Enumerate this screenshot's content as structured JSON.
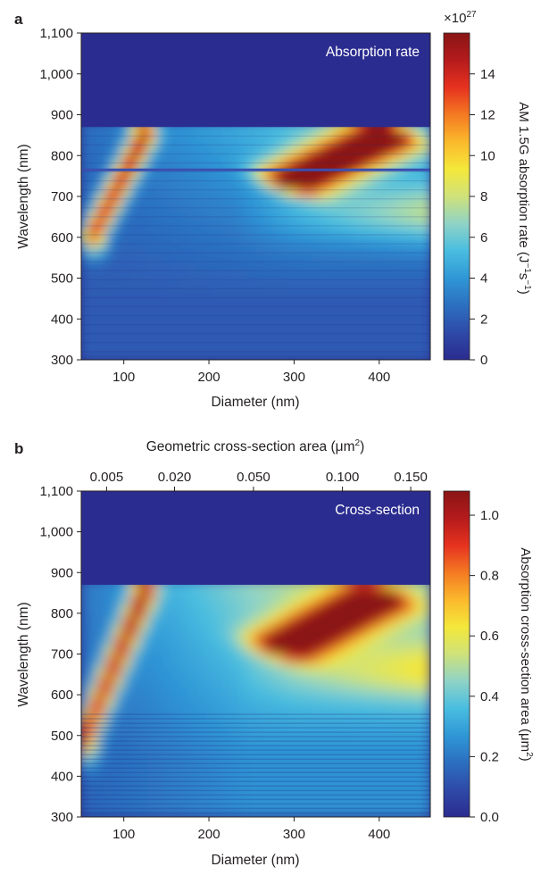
{
  "colormap": [
    "#2b2c8f",
    "#2e4aa8",
    "#2c6fc0",
    "#2f97d6",
    "#49bde0",
    "#8fd3c6",
    "#cfe27a",
    "#f4e83a",
    "#fbb92c",
    "#f47a22",
    "#e6321f",
    "#b51b1c",
    "#8a1515"
  ],
  "chart_data": [
    {
      "type": "heatmap",
      "panel": "a",
      "title": "Absorption rate",
      "xlabel": "Diameter (nm)",
      "ylabel": "Wavelength (nm)",
      "xlim": [
        50,
        460
      ],
      "ylim": [
        300,
        1100
      ],
      "x_ticks": [
        "100",
        "200",
        "300",
        "400"
      ],
      "y_ticks": [
        "300",
        "400",
        "500",
        "600",
        "700",
        "800",
        "900",
        "1,000",
        "1,100"
      ],
      "colorbar": {
        "label_main": "AM 1.5G absorption rate (J",
        "label_sup1": "−1",
        "label_mid": "s",
        "label_sup2": "−1",
        "label_end": ")",
        "multiplier_base": "×10",
        "multiplier_exp": "27",
        "range": [
          0,
          16
        ],
        "ticks": [
          "0",
          "2",
          "4",
          "6",
          "8",
          "10",
          "12",
          "14"
        ]
      },
      "features": [
        {
          "name": "cutoff",
          "wavelength": 870
        },
        {
          "name": "notch",
          "wavelength": 765
        },
        {
          "name": "mode-1",
          "diameter_start": 65,
          "wavelength_start": 610,
          "diameter_end": 125,
          "wavelength_end": 850,
          "peak": 12
        },
        {
          "name": "mode-2",
          "diameter_start": 300,
          "wavelength_start": 740,
          "diameter_end": 410,
          "wavelength_end": 850,
          "peak": 16
        }
      ]
    },
    {
      "type": "heatmap",
      "panel": "b",
      "title": "Cross-section",
      "xlabel": "Diameter (nm)",
      "x2label_main": "Geometric cross-section area (μm",
      "x2label_sup": "2",
      "x2label_end": ")",
      "x2_ticks": [
        "0.005",
        "0.020",
        "0.050",
        "0.100",
        "0.150"
      ],
      "ylabel": "Wavelength (nm)",
      "xlim": [
        50,
        460
      ],
      "ylim": [
        300,
        1100
      ],
      "x_ticks": [
        "100",
        "200",
        "300",
        "400"
      ],
      "y_ticks": [
        "300",
        "400",
        "500",
        "600",
        "700",
        "800",
        "900",
        "1,000",
        "1,100"
      ],
      "colorbar": {
        "label_main": "Absorption cross-section area (μm",
        "label_sup": "2",
        "label_end": ")",
        "range": [
          0,
          1.08
        ],
        "ticks": [
          "0.0",
          "0.2",
          "0.4",
          "0.6",
          "0.8",
          "1.0"
        ]
      },
      "features": [
        {
          "name": "cutoff",
          "wavelength": 870
        },
        {
          "name": "mode-1",
          "diameter_start": 55,
          "wavelength_start": 500,
          "diameter_end": 125,
          "wavelength_end": 850,
          "peak": 0.8
        },
        {
          "name": "mode-2",
          "diameter_start": 290,
          "wavelength_start": 720,
          "diameter_end": 400,
          "wavelength_end": 840,
          "peak": 1.05
        }
      ]
    }
  ]
}
